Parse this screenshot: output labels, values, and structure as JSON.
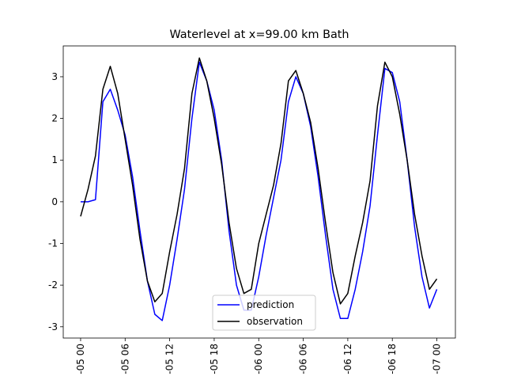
{
  "chart_data": {
    "type": "line",
    "title": "Waterlevel at x=99.00 km Bath",
    "x": [
      0,
      1,
      2,
      3,
      4,
      5,
      6,
      7,
      8,
      9,
      10,
      11,
      12,
      13,
      14,
      15,
      16,
      17,
      18,
      19,
      20,
      21,
      22,
      23,
      24,
      25,
      26,
      27,
      28,
      29,
      30,
      31,
      32,
      33,
      34,
      35,
      36,
      37,
      38,
      39,
      40,
      41,
      42,
      43,
      44,
      45,
      46,
      47,
      48
    ],
    "series": [
      {
        "name": "prediction",
        "color": "#0000ff",
        "values": [
          0,
          0,
          0.05,
          2.4,
          2.7,
          2.2,
          1.6,
          0.6,
          -0.7,
          -1.9,
          -2.7,
          -2.85,
          -2.0,
          -0.9,
          0.3,
          2.0,
          3.35,
          2.9,
          2.2,
          1.0,
          -0.7,
          -2.0,
          -2.6,
          -2.6,
          -1.8,
          -0.8,
          0.1,
          1.0,
          2.4,
          3.0,
          2.6,
          1.8,
          0.6,
          -0.8,
          -2.1,
          -2.8,
          -2.8,
          -2.1,
          -1.2,
          -0.1,
          1.6,
          3.2,
          3.1,
          2.4,
          1.0,
          -0.6,
          -1.8,
          -2.55,
          -2.1
        ]
      },
      {
        "name": "observation",
        "color": "#000000",
        "values": [
          -0.35,
          0.3,
          1.1,
          2.7,
          3.25,
          2.6,
          1.5,
          0.4,
          -0.9,
          -1.9,
          -2.4,
          -2.2,
          -1.2,
          -0.3,
          0.8,
          2.6,
          3.45,
          2.9,
          2.0,
          0.9,
          -0.5,
          -1.6,
          -2.2,
          -2.1,
          -1.0,
          -0.3,
          0.4,
          1.4,
          2.9,
          3.15,
          2.6,
          1.9,
          0.8,
          -0.5,
          -1.7,
          -2.45,
          -2.2,
          -1.3,
          -0.5,
          0.5,
          2.3,
          3.35,
          3.0,
          2.1,
          1.0,
          -0.3,
          -1.3,
          -2.1,
          -1.85
        ]
      }
    ],
    "xlim": [
      -2.34,
      50.5
    ],
    "xticks": [
      {
        "value": 0,
        "label": "-05 00"
      },
      {
        "value": 6,
        "label": "-05 06"
      },
      {
        "value": 12,
        "label": "-05 12"
      },
      {
        "value": 18,
        "label": "-05 18"
      },
      {
        "value": 24,
        "label": "-06 00"
      },
      {
        "value": 30,
        "label": "-06 06"
      },
      {
        "value": 36,
        "label": "-06 12"
      },
      {
        "value": 42,
        "label": "-06 18"
      },
      {
        "value": 48,
        "label": "-07 00"
      }
    ],
    "ylim": [
      -3.27,
      3.74
    ],
    "yticks": [
      -3,
      -2,
      -1,
      0,
      1,
      2,
      3
    ],
    "legend": "lower center"
  }
}
